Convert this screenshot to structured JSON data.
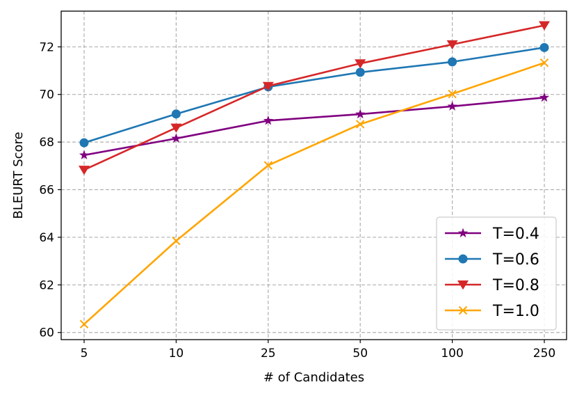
{
  "chart_data": {
    "type": "line",
    "categories": [
      "5",
      "10",
      "25",
      "50",
      "100",
      "250"
    ],
    "xlabel": "# of Candidates",
    "ylabel": "BLEURT Score",
    "ylim": [
      59.7,
      73.5
    ],
    "yticks": [
      "60",
      "62",
      "64",
      "66",
      "68",
      "70",
      "72"
    ],
    "grid": true,
    "legend_position": "lower-right",
    "series": [
      {
        "name": "T=0.4",
        "color": "#800080",
        "marker": "star",
        "values": [
          67.45,
          68.15,
          68.9,
          69.17,
          69.5,
          69.87
        ]
      },
      {
        "name": "T=0.6",
        "color": "#1f77b4",
        "marker": "circle",
        "values": [
          67.97,
          69.18,
          70.32,
          70.93,
          71.37,
          71.97
        ]
      },
      {
        "name": "T=0.8",
        "color": "#d62728",
        "marker": "triangle-down",
        "values": [
          66.83,
          68.6,
          70.35,
          71.3,
          72.1,
          72.9
        ]
      },
      {
        "name": "T=1.0",
        "color": "#ffa500",
        "marker": "x",
        "values": [
          60.35,
          63.85,
          67.02,
          68.75,
          70.02,
          71.33
        ]
      }
    ]
  }
}
